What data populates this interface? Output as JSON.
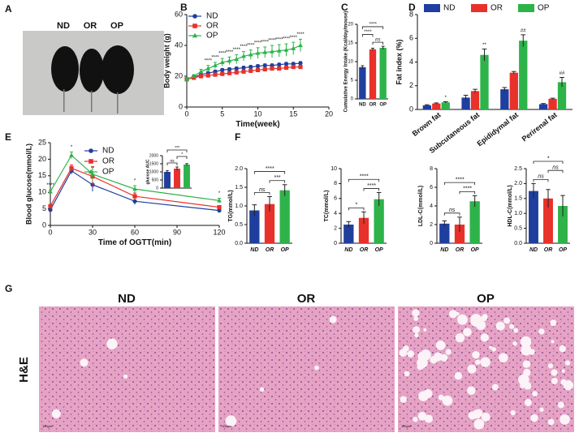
{
  "figure": {
    "panel_letters": [
      "A",
      "B",
      "C",
      "D",
      "E",
      "F",
      "G"
    ],
    "photo_labels": [
      "ND",
      "OR",
      "OP"
    ],
    "histology": {
      "titles": [
        "ND",
        "OR",
        "OP"
      ],
      "stain": "H&E",
      "scale_bar": "100μm"
    }
  },
  "chart_data": [
    {
      "type": "line",
      "xlabel": "Time(week)",
      "ylabel": "Body weight (g)",
      "x": [
        0,
        1,
        2,
        3,
        4,
        5,
        6,
        7,
        8,
        9,
        10,
        11,
        12,
        13,
        14,
        15,
        16
      ],
      "xlim": [
        0,
        20
      ],
      "xticks": [
        0,
        5,
        10,
        15,
        20
      ],
      "ylim": [
        0,
        60
      ],
      "yticks": [
        0,
        20,
        40,
        60
      ],
      "legend": "top-left",
      "series": [
        {
          "name": "ND",
          "color": "#1f3f9e",
          "marker": "circle",
          "values": [
            18,
            19.5,
            21,
            22,
            23,
            24,
            24.5,
            25,
            25.5,
            26,
            26.5,
            27,
            27,
            27.5,
            28,
            28,
            28.5
          ],
          "errors": [
            1,
            1,
            1,
            1,
            1,
            1,
            1,
            1,
            1,
            1,
            1,
            1,
            1,
            1,
            1,
            1,
            1
          ]
        },
        {
          "name": "OR",
          "color": "#e8312a",
          "marker": "square",
          "values": [
            18,
            19,
            20,
            20.5,
            21,
            21.5,
            22,
            22.5,
            23,
            23.5,
            24,
            24.5,
            25,
            25,
            25.5,
            26,
            26
          ],
          "errors": [
            1,
            1,
            1,
            1,
            1,
            1,
            1,
            1,
            1,
            1,
            1,
            1,
            1,
            1,
            1,
            1,
            1
          ]
        },
        {
          "name": "OP",
          "color": "#2db34a",
          "marker": "triangle",
          "values": [
            18,
            20,
            23,
            25,
            27,
            29,
            30,
            31,
            33,
            34,
            35,
            35.5,
            36,
            36.5,
            37,
            38,
            40
          ],
          "errors": [
            1,
            1,
            1.5,
            2,
            2,
            2.5,
            2.5,
            3,
            3,
            3,
            3.5,
            3.5,
            4,
            4,
            4,
            4,
            4
          ]
        }
      ],
      "sig_labels": [
        null,
        null,
        null,
        "****",
        "****",
        "****",
        "****",
        "****",
        "****",
        "****",
        "****",
        "****",
        "****",
        "****",
        "****",
        "****",
        "****"
      ]
    },
    {
      "type": "bar",
      "ylabel": "Cumulative Energy Intake (Kcal/day/mouse)",
      "categories": [
        "ND",
        "OR",
        "OP"
      ],
      "values": [
        8.5,
        13.3,
        13.7
      ],
      "errors": [
        0.4,
        0.3,
        0.4
      ],
      "colors": [
        "#1f3f9e",
        "#e8312a",
        "#2db34a"
      ],
      "ylim": [
        0,
        20
      ],
      "yticks": [
        0,
        5,
        10,
        15,
        20
      ],
      "comparisons": [
        {
          "between": [
            "OR",
            "OP"
          ],
          "label": "ns"
        },
        {
          "between": [
            "ND",
            "OR"
          ],
          "label": "****"
        },
        {
          "between": [
            "ND",
            "OP"
          ],
          "label": "****"
        }
      ]
    },
    {
      "type": "grouped_bar",
      "ylabel": "Fat index (%)",
      "categories": [
        "Brown fat",
        "Subcutaneous fat",
        "Epididymal fat",
        "Perirenal fat"
      ],
      "ylim": [
        0,
        8
      ],
      "yticks": [
        0,
        2,
        4,
        6,
        8
      ],
      "legend": "top",
      "rotated_labels": true,
      "series": [
        {
          "name": "ND",
          "color": "#1f3f9e",
          "values": [
            0.35,
            1.0,
            1.7,
            0.45
          ],
          "errors": [
            0.05,
            0.2,
            0.15,
            0.05
          ]
        },
        {
          "name": "OR",
          "color": "#e8312a",
          "values": [
            0.5,
            1.55,
            3.1,
            0.9
          ],
          "errors": [
            0.05,
            0.15,
            0.1,
            0.05
          ]
        },
        {
          "name": "OP",
          "color": "#2db34a",
          "values": [
            0.6,
            4.6,
            5.8,
            2.3
          ],
          "errors": [
            0.05,
            0.5,
            0.5,
            0.4
          ],
          "sig_labels": [
            "*",
            "**",
            "##",
            "##"
          ]
        }
      ]
    },
    {
      "type": "line",
      "xlabel": "Time of OGTT(min)",
      "ylabel": "Blood glucose(mmol/L)",
      "x": [
        0,
        15,
        30,
        60,
        120
      ],
      "xlim": [
        0,
        120
      ],
      "xticks": [
        0,
        30,
        60,
        90,
        120
      ],
      "ylim": [
        0,
        25
      ],
      "yticks": [
        0,
        5,
        10,
        15,
        20,
        25
      ],
      "legend": "upper-middle",
      "series": [
        {
          "name": "ND",
          "color": "#1f3f9e",
          "marker": "circle",
          "values": [
            4.7,
            16.5,
            12.3,
            7.3,
            4.5
          ],
          "errors": [
            0.5,
            1,
            2,
            1,
            0.5
          ]
        },
        {
          "name": "OR",
          "color": "#e8312a",
          "marker": "square",
          "values": [
            5.8,
            17.3,
            14.8,
            8.8,
            5.5
          ],
          "errors": [
            0.5,
            1,
            3,
            1,
            0.5
          ]
        },
        {
          "name": "OP",
          "color": "#2db34a",
          "marker": "triangle",
          "values": [
            10.2,
            21.2,
            15.5,
            11.0,
            7.5
          ],
          "errors": [
            0.5,
            1,
            2,
            1,
            0.7
          ]
        }
      ],
      "sig_labels": [
        "****",
        "*",
        null,
        "*",
        "*"
      ]
    },
    {
      "type": "bar",
      "ylabel": "glucose AUC",
      "categories": [
        "ND",
        "OR",
        "OP"
      ],
      "show_categories": false,
      "values": [
        1000,
        1200,
        1450
      ],
      "errors": [
        80,
        100,
        60
      ],
      "colors": [
        "#1f3f9e",
        "#e8312a",
        "#2db34a"
      ],
      "ylim": [
        0,
        2000
      ],
      "yticks": [
        0,
        500,
        1000,
        1500,
        2000
      ],
      "comparisons": [
        {
          "between": [
            "ND",
            "OR"
          ],
          "label": "ns"
        },
        {
          "between": [
            "OR",
            "OP"
          ],
          "label": "*"
        },
        {
          "between": [
            "ND",
            "OP"
          ],
          "label": "***"
        }
      ]
    },
    {
      "type": "bar",
      "ylabel": "TG(mmol/L)",
      "categories": [
        "ND",
        "OR",
        "OP"
      ],
      "category_style": "italic",
      "values": [
        0.88,
        1.05,
        1.42
      ],
      "errors": [
        0.15,
        0.2,
        0.15
      ],
      "colors": [
        "#1f3f9e",
        "#e8312a",
        "#2db34a"
      ],
      "ylim": [
        0,
        2
      ],
      "yticks": [
        {
          "value": 0,
          "label": "0.0"
        },
        0.5,
        {
          "value": 1,
          "label": "1.0"
        },
        1.5,
        {
          "value": 2,
          "label": "2.0"
        }
      ],
      "comparisons": [
        {
          "between": [
            "ND",
            "OR"
          ],
          "label": "ns"
        },
        {
          "between": [
            "OR",
            "OP"
          ],
          "label": "***"
        },
        {
          "between": [
            "ND",
            "OP"
          ],
          "label": "****"
        }
      ]
    },
    {
      "type": "bar",
      "ylabel": "TC(mmol/L)",
      "categories": [
        "ND",
        "OR",
        "OP"
      ],
      "category_style": "italic",
      "values": [
        2.5,
        3.4,
        5.9
      ],
      "errors": [
        0.4,
        0.8,
        0.9
      ],
      "colors": [
        "#1f3f9e",
        "#e8312a",
        "#2db34a"
      ],
      "ylim": [
        0,
        10
      ],
      "yticks": [
        0,
        2,
        4,
        6,
        8,
        10
      ],
      "comparisons": [
        {
          "between": [
            "ND",
            "OR"
          ],
          "label": "*"
        },
        {
          "between": [
            "OR",
            "OP"
          ],
          "label": "****"
        },
        {
          "between": [
            "ND",
            "OP"
          ],
          "label": "****"
        }
      ]
    },
    {
      "type": "bar",
      "ylabel": "LDL-C(mmol/L)",
      "categories": [
        "ND",
        "OR",
        "OP"
      ],
      "category_style": "italic",
      "values": [
        2.1,
        2.0,
        4.5
      ],
      "errors": [
        0.3,
        0.8,
        0.6
      ],
      "colors": [
        "#1f3f9e",
        "#e8312a",
        "#2db34a"
      ],
      "ylim": [
        0,
        8
      ],
      "yticks": [
        0,
        2,
        4,
        6,
        8
      ],
      "comparisons": [
        {
          "between": [
            "ND",
            "OR"
          ],
          "label": "ns"
        },
        {
          "between": [
            "OR",
            "OP"
          ],
          "label": "****"
        },
        {
          "between": [
            "ND",
            "OP"
          ],
          "label": "****"
        }
      ]
    },
    {
      "type": "bar",
      "ylabel": "HDL-C(mmol/L)",
      "categories": [
        "ND",
        "OR",
        "OP"
      ],
      "category_style": "italic",
      "values": [
        1.75,
        1.5,
        1.25
      ],
      "errors": [
        0.25,
        0.3,
        0.35
      ],
      "colors": [
        "#1f3f9e",
        "#e8312a",
        "#2db34a"
      ],
      "ylim": [
        0,
        2.5
      ],
      "yticks": [
        {
          "value": 0,
          "label": "0.0"
        },
        0.5,
        {
          "value": 1,
          "label": "1.0"
        },
        1.5,
        {
          "value": 2,
          "label": "2.0"
        },
        2.5
      ],
      "comparisons": [
        {
          "between": [
            "ND",
            "OR"
          ],
          "label": "ns"
        },
        {
          "between": [
            "OR",
            "OP"
          ],
          "label": "ns"
        },
        {
          "between": [
            "ND",
            "OP"
          ],
          "label": "*"
        }
      ]
    }
  ]
}
